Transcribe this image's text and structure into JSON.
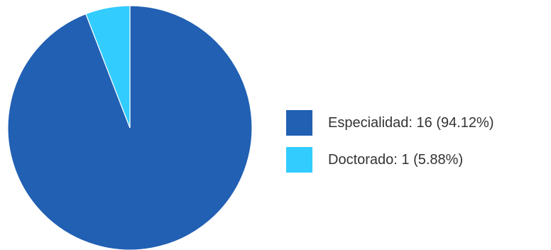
{
  "chart_data": {
    "type": "pie",
    "title": "",
    "slices": [
      {
        "name": "Especialidad",
        "value": 16,
        "percent": 94.12,
        "color": "#2160b3"
      },
      {
        "name": "Doctorado",
        "value": 1,
        "percent": 5.88,
        "color": "#33ccff"
      }
    ],
    "legend_position": "right",
    "legend": [
      {
        "label": "Especialidad: 16 (94.12%)",
        "color": "#2160b3"
      },
      {
        "label": "Doctorado: 1 (5.88%)",
        "color": "#33ccff"
      }
    ]
  }
}
